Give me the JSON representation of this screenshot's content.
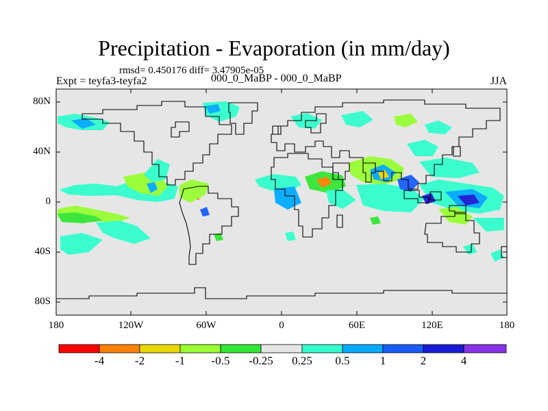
{
  "title": "Precipitation - Evaporation (in mm/day)",
  "stats_line": "rmsd= 0.450176  diff= 3.47905e-05",
  "expt_label": "Expt = teyfa3-teyfa2",
  "period_label": "000_0_MaBP - 000_0_MaBP",
  "season_label": "JJA",
  "lat_ticks": [
    "80N",
    "40N",
    "0",
    "40S",
    "80S"
  ],
  "lon_ticks": [
    "180",
    "120W",
    "60W",
    "0",
    "60E",
    "120E",
    "180"
  ],
  "colorbar": {
    "labels": [
      "-4",
      "-2",
      "-1",
      "-0.5",
      "-0.25",
      "0.25",
      "0.5",
      "1",
      "2",
      "4"
    ],
    "colors": [
      "#ff0000",
      "#ff8000",
      "#e8d800",
      "#99ff33",
      "#33e633",
      "#e6e6e6",
      "#33ffcc",
      "#00aaff",
      "#1a5cff",
      "#1a1ad6",
      "#8833e6"
    ]
  },
  "map": {
    "type": "filled-contour-map",
    "projection": "cylindrical-equidistant",
    "lon_range": [
      -180,
      180
    ],
    "lat_range": [
      -90,
      90
    ],
    "background_color": "#e6e6e6"
  }
}
